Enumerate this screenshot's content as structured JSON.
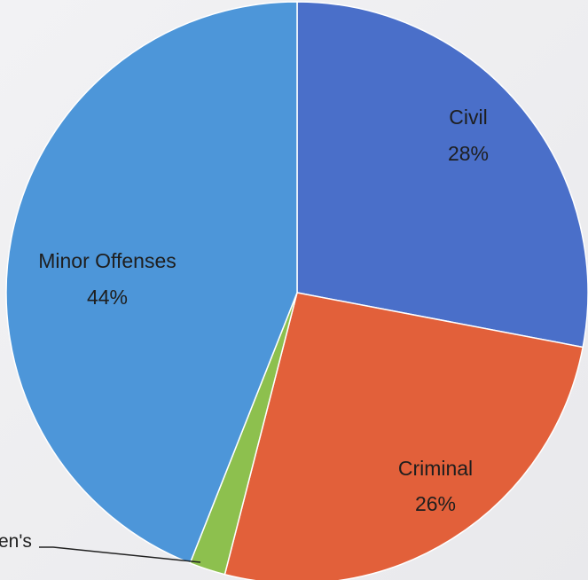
{
  "chart_data": {
    "type": "pie",
    "start_angle_deg": 0,
    "direction": "clockwise",
    "slices": [
      {
        "name": "Civil",
        "value": 28,
        "label_percent": "28%",
        "color": "#4a6fc9"
      },
      {
        "name": "Criminal",
        "value": 26,
        "label_percent": "26%",
        "color": "#e2603a"
      },
      {
        "name": "Children's",
        "value": 2,
        "label_percent": "",
        "color": "#8dc04e"
      },
      {
        "name": "Minor Offenses",
        "value": 44,
        "label_percent": "44%",
        "color": "#4d96d9"
      }
    ],
    "cut_off_label": "en's",
    "title": "",
    "legend": "none"
  }
}
